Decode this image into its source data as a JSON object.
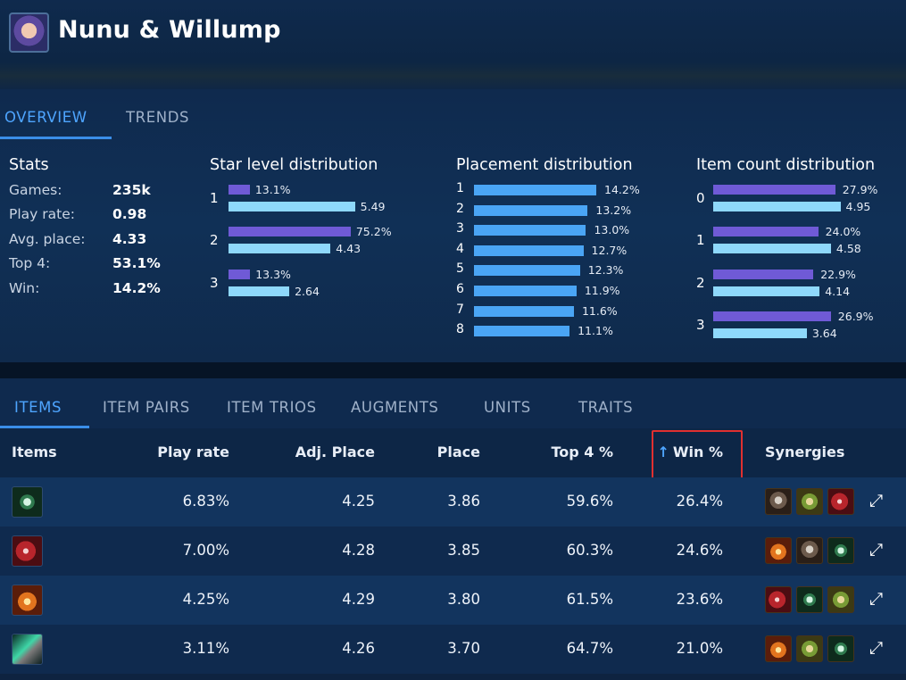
{
  "header": {
    "champion_name": "Nunu & Willump",
    "portrait_icon": "champion-portrait-icon"
  },
  "top_tabs": [
    {
      "label": "OVERVIEW",
      "active": true
    },
    {
      "label": "TRENDS",
      "active": false
    }
  ],
  "stats": {
    "title": "Stats",
    "rows": [
      {
        "label": "Games:",
        "value": "235k"
      },
      {
        "label": "Play rate:",
        "value": "0.98"
      },
      {
        "label": "Avg. place:",
        "value": "4.33"
      },
      {
        "label": "Top 4:",
        "value": "53.1%"
      },
      {
        "label": "Win:",
        "value": "14.2%"
      }
    ]
  },
  "star_level_distribution": {
    "title": "Star level distribution",
    "groups": [
      {
        "level": "1",
        "percent": "13.1%",
        "percent_value": 13.1,
        "avg": "5.49",
        "avg_value": 5.49
      },
      {
        "level": "2",
        "percent": "75.2%",
        "percent_value": 75.2,
        "avg": "4.43",
        "avg_value": 4.43
      },
      {
        "level": "3",
        "percent": "13.3%",
        "percent_value": 13.3,
        "avg": "2.64",
        "avg_value": 2.64
      }
    ]
  },
  "placement_distribution": {
    "title": "Placement distribution",
    "rows": [
      {
        "place": "1",
        "label": "14.2%",
        "value": 14.2
      },
      {
        "place": "2",
        "label": "13.2%",
        "value": 13.2
      },
      {
        "place": "3",
        "label": "13.0%",
        "value": 13.0
      },
      {
        "place": "4",
        "label": "12.7%",
        "value": 12.7
      },
      {
        "place": "5",
        "label": "12.3%",
        "value": 12.3
      },
      {
        "place": "6",
        "label": "11.9%",
        "value": 11.9
      },
      {
        "place": "7",
        "label": "11.6%",
        "value": 11.6
      },
      {
        "place": "8",
        "label": "11.1%",
        "value": 11.1
      }
    ]
  },
  "item_count_distribution": {
    "title": "Item count distribution",
    "groups": [
      {
        "count": "0",
        "percent": "27.9%",
        "percent_value": 27.9,
        "avg": "4.95",
        "avg_value": 4.95
      },
      {
        "count": "1",
        "percent": "24.0%",
        "percent_value": 24.0,
        "avg": "4.58",
        "avg_value": 4.58
      },
      {
        "count": "2",
        "percent": "22.9%",
        "percent_value": 22.9,
        "avg": "4.14",
        "avg_value": 4.14
      },
      {
        "count": "3",
        "percent": "26.9%",
        "percent_value": 26.9,
        "avg": "3.64",
        "avg_value": 3.64
      }
    ]
  },
  "bottom_tabs": [
    {
      "label": "ITEMS",
      "active": true
    },
    {
      "label": "ITEM PAIRS",
      "active": false
    },
    {
      "label": "ITEM TRIOS",
      "active": false
    },
    {
      "label": "AUGMENTS",
      "active": false
    },
    {
      "label": "UNITS",
      "active": false
    },
    {
      "label": "TRAITS",
      "active": false
    }
  ],
  "table": {
    "headers": {
      "items": "Items",
      "play_rate": "Play rate",
      "adj_place": "Adj. Place",
      "place": "Place",
      "top4": "Top 4 %",
      "win": "Win %",
      "synergies": "Synergies"
    },
    "sort_icon": "arrow-up-icon",
    "rows": [
      {
        "item_icon": "cloak-item-icon",
        "play_rate": "6.83%",
        "adj_place": "4.25",
        "place": "3.86",
        "top4": "59.6%",
        "win": "26.4%",
        "synergies": [
          "knight-unit-icon",
          "goblin-unit-icon",
          "claw-item-icon"
        ]
      },
      {
        "item_icon": "claw-item-icon",
        "play_rate": "7.00%",
        "adj_place": "4.28",
        "place": "3.85",
        "top4": "60.3%",
        "win": "24.6%",
        "synergies": [
          "fire-item-icon",
          "knight-unit-icon",
          "cloak-item-icon"
        ]
      },
      {
        "item_icon": "fire-item-icon",
        "play_rate": "4.25%",
        "adj_place": "4.29",
        "place": "3.80",
        "top4": "61.5%",
        "win": "23.6%",
        "synergies": [
          "claw-item-icon",
          "cloak-item-icon",
          "goblin-unit-icon"
        ]
      },
      {
        "item_icon": "gun-item-icon",
        "play_rate": "3.11%",
        "adj_place": "4.26",
        "place": "3.70",
        "top4": "64.7%",
        "win": "21.0%",
        "synergies": [
          "fire-item-icon",
          "goblin-unit-icon",
          "cloak-item-icon"
        ]
      }
    ]
  },
  "colors": {
    "accent": "#4ea5ff",
    "purple_bar": "#6f5ad6",
    "light_bar": "#8ed8fb",
    "blue_bar": "#4aa5f5",
    "highlight": "#e03030"
  }
}
